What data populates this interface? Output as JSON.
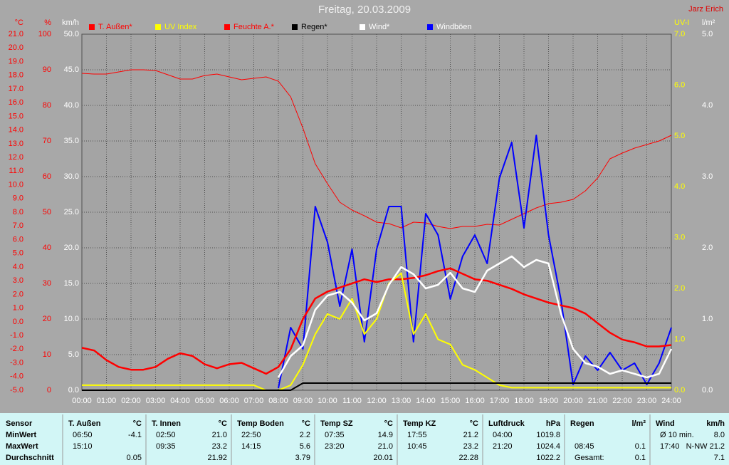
{
  "chart_data": {
    "type": "line",
    "title": "Freitag, 20.03.2009",
    "author": "Jarz Erich",
    "x": [
      0,
      0.5,
      1,
      1.5,
      2,
      2.5,
      3,
      3.5,
      4,
      4.5,
      5,
      5.5,
      6,
      6.5,
      7,
      7.5,
      8,
      8.5,
      9,
      9.5,
      10,
      10.5,
      11,
      11.5,
      12,
      12.5,
      13,
      13.5,
      14,
      14.5,
      15,
      15.5,
      16,
      16.5,
      17,
      17.5,
      18,
      18.5,
      19,
      19.5,
      20,
      20.5,
      21,
      21.5,
      22,
      22.5,
      23,
      23.5,
      24
    ],
    "xlim": [
      0,
      24
    ],
    "xticks": [
      {
        "value": 0,
        "label": "00:00"
      },
      {
        "value": 1,
        "label": "01:00"
      },
      {
        "value": 2,
        "label": "02:00"
      },
      {
        "value": 3,
        "label": "03:00"
      },
      {
        "value": 4,
        "label": "04:00"
      },
      {
        "value": 5,
        "label": "05:00"
      },
      {
        "value": 6,
        "label": "06:00"
      },
      {
        "value": 7,
        "label": "07:00"
      },
      {
        "value": 8,
        "label": "08:00"
      },
      {
        "value": 9,
        "label": "09:00"
      },
      {
        "value": 10,
        "label": "10:00"
      },
      {
        "value": 11,
        "label": "11:00"
      },
      {
        "value": 12,
        "label": "12:00"
      },
      {
        "value": 13,
        "label": "13:00"
      },
      {
        "value": 14,
        "label": "14:00"
      },
      {
        "value": 15,
        "label": "15:00"
      },
      {
        "value": 16,
        "label": "16:00"
      },
      {
        "value": 17,
        "label": "17:00"
      },
      {
        "value": 18,
        "label": "18:00"
      },
      {
        "value": 19,
        "label": "19:00"
      },
      {
        "value": 20,
        "label": "20:00"
      },
      {
        "value": 21,
        "label": "21:00"
      },
      {
        "value": 22,
        "label": "22:00"
      },
      {
        "value": 23,
        "label": "23:00"
      },
      {
        "value": 24,
        "label": "24:00"
      }
    ],
    "grid": true,
    "grid_axis": 2,
    "y_axes": [
      {
        "label": "°C",
        "color": "#ff0000",
        "lim": [
          -5,
          21
        ],
        "ticks": [
          {
            "value": -5,
            "label": "-5.0"
          },
          {
            "value": -4,
            "label": "-4.0"
          },
          {
            "value": -3,
            "label": "-3.0"
          },
          {
            "value": -2,
            "label": "-2.0"
          },
          {
            "value": -1,
            "label": "-1.0"
          },
          {
            "value": 0,
            "label": "0.0"
          },
          {
            "value": 1,
            "label": "1.0"
          },
          {
            "value": 2,
            "label": "2.0"
          },
          {
            "value": 3,
            "label": "3.0"
          },
          {
            "value": 4,
            "label": "4.0"
          },
          {
            "value": 5,
            "label": "5.0"
          },
          {
            "value": 6,
            "label": "6.0"
          },
          {
            "value": 7,
            "label": "7.0"
          },
          {
            "value": 8,
            "label": "8.0"
          },
          {
            "value": 9,
            "label": "9.0"
          },
          {
            "value": 10,
            "label": "10.0"
          },
          {
            "value": 11,
            "label": "11.0"
          },
          {
            "value": 12,
            "label": "12.0"
          },
          {
            "value": 13,
            "label": "13.0"
          },
          {
            "value": 14,
            "label": "14.0"
          },
          {
            "value": 15,
            "label": "15.0"
          },
          {
            "value": 16,
            "label": "16.0"
          },
          {
            "value": 17,
            "label": "17.0"
          },
          {
            "value": 18,
            "label": "18.0"
          },
          {
            "value": 19,
            "label": "19.0"
          },
          {
            "value": 20,
            "label": "20.0"
          },
          {
            "value": 21,
            "label": "21.0"
          }
        ]
      },
      {
        "label": "%",
        "color": "#ff0000",
        "lim": [
          0,
          100
        ],
        "ticks": [
          0,
          10,
          20,
          30,
          40,
          50,
          60,
          70,
          80,
          90,
          100
        ]
      },
      {
        "label": "km/h",
        "color": "#ffffff",
        "lim": [
          0,
          50
        ],
        "ticks": [
          {
            "value": 0,
            "label": "0.0"
          },
          {
            "value": 5,
            "label": "5.0"
          },
          {
            "value": 10,
            "label": "10.0"
          },
          {
            "value": 15,
            "label": "15.0"
          },
          {
            "value": 20,
            "label": "20.0"
          },
          {
            "value": 25,
            "label": "25.0"
          },
          {
            "value": 30,
            "label": "30.0"
          },
          {
            "value": 35,
            "label": "35.0"
          },
          {
            "value": 40,
            "label": "40.0"
          },
          {
            "value": 45,
            "label": "45.0"
          },
          {
            "value": 50,
            "label": "50.0"
          }
        ]
      },
      {
        "label": "UV-I",
        "color": "#ffff00",
        "lim": [
          0,
          7
        ],
        "ticks": [
          {
            "value": 0,
            "label": "0.0"
          },
          {
            "value": 1,
            "label": "1.0"
          },
          {
            "value": 2,
            "label": "2.0"
          },
          {
            "value": 3,
            "label": "3.0"
          },
          {
            "value": 4,
            "label": "4.0"
          },
          {
            "value": 5,
            "label": "5.0"
          },
          {
            "value": 6,
            "label": "6.0"
          },
          {
            "value": 7,
            "label": "7.0"
          }
        ]
      },
      {
        "label": "l/m²",
        "color": "#ffffff",
        "lim": [
          0,
          5
        ],
        "ticks": [
          {
            "value": 0,
            "label": "0.0"
          },
          {
            "value": 1,
            "label": "1.0"
          },
          {
            "value": 2,
            "label": "2.0"
          },
          {
            "value": 3,
            "label": "3.0"
          },
          {
            "value": 4,
            "label": "4.0"
          },
          {
            "value": 5,
            "label": "5.0"
          }
        ]
      }
    ],
    "series": [
      {
        "name": "T. Außen*",
        "color": "#ff0000",
        "label_color": "#ff0000",
        "axis": 0,
        "values": [
          -1.9,
          -2.1,
          -2.8,
          -3.3,
          -3.5,
          -3.5,
          -3.3,
          -2.7,
          -2.3,
          -2.5,
          -3.1,
          -3.4,
          -3.1,
          -3.0,
          -3.4,
          -3.8,
          -3.3,
          -2.0,
          0.2,
          1.7,
          2.2,
          2.5,
          2.8,
          3.1,
          2.9,
          3.1,
          3.1,
          3.2,
          3.4,
          3.7,
          3.9,
          3.5,
          3.1,
          3.0,
          2.7,
          2.4,
          2.0,
          1.7,
          1.4,
          1.2,
          1.0,
          0.6,
          -0.1,
          -0.8,
          -1.3,
          -1.5,
          -1.8,
          -1.8,
          -1.7
        ]
      },
      {
        "name": "UV Index",
        "color": "#ffff00",
        "label_color": "#ffff00",
        "axis": 3,
        "values": [
          0.1,
          0.1,
          0.1,
          0.1,
          0.1,
          0.1,
          0.1,
          0.1,
          0.1,
          0.1,
          0.1,
          0.1,
          0.1,
          0.1,
          0.1,
          0,
          0,
          0.1,
          0.5,
          1.1,
          1.5,
          1.4,
          1.8,
          1.1,
          1.4,
          2.1,
          2.3,
          1.1,
          1.5,
          1.0,
          0.9,
          0.5,
          0.4,
          0.25,
          0.1,
          0.05,
          0.05,
          0.05,
          0.05,
          0.05,
          0.05,
          0.05,
          0.05,
          0.05,
          0.05,
          0.05,
          0.05,
          0.05,
          0.05
        ]
      },
      {
        "name": "Feuchte A.*",
        "color": "#ff0000",
        "label_color": "#ff0000",
        "axis": 1,
        "values": [
          89,
          88.8,
          88.8,
          89.4,
          90,
          90,
          89.8,
          88.6,
          87.4,
          87.4,
          88.4,
          88.8,
          88,
          87.2,
          87.6,
          88,
          86.8,
          82.4,
          73.6,
          63.6,
          58,
          52.8,
          50.6,
          49,
          47.2,
          46.8,
          45.6,
          47.2,
          47,
          46,
          45.4,
          46,
          46,
          46.6,
          46.4,
          48,
          49.6,
          51.2,
          52.4,
          52.8,
          53.6,
          56,
          59.6,
          65,
          66.6,
          68,
          69,
          70,
          71.6
        ]
      },
      {
        "name": "Regen*",
        "color": "#000000",
        "label_color": "#000000",
        "axis": 4,
        "values": [
          0,
          0,
          0,
          0,
          0,
          0,
          0,
          0,
          0,
          0,
          0,
          0,
          0,
          0,
          0,
          0,
          0,
          0,
          0.1,
          0.1,
          0.1,
          0.1,
          0.1,
          0.1,
          0.1,
          0.1,
          0.1,
          0.1,
          0.1,
          0.1,
          0.1,
          0.1,
          0.1,
          0.1,
          0.1,
          0.1,
          0.1,
          0.1,
          0.1,
          0.1,
          0.1,
          0.1,
          0.1,
          0.1,
          0.1,
          0.1,
          0.1,
          0.1,
          0.1
        ]
      },
      {
        "name": "Wind*",
        "color": "#ffffff",
        "label_color": "#ffffff",
        "axis": 2,
        "values": [
          null,
          null,
          null,
          null,
          null,
          null,
          null,
          null,
          null,
          null,
          null,
          null,
          null,
          null,
          null,
          null,
          1.8,
          4.8,
          6.3,
          11.3,
          13.3,
          13.8,
          12.3,
          9.8,
          10.8,
          14.8,
          17.3,
          16.3,
          14.3,
          14.8,
          16.5,
          14.3,
          13.8,
          16.8,
          17.8,
          18.8,
          17.3,
          18.3,
          17.8,
          10.8,
          5.8,
          3.8,
          3.3,
          2.3,
          2.8,
          2.3,
          1.8,
          2.3,
          5.8
        ]
      },
      {
        "name": "Windböen",
        "color": "#0000ff",
        "label_color": "#ffffff",
        "axis": 2,
        "values": [
          null,
          null,
          null,
          null,
          null,
          null,
          null,
          null,
          null,
          null,
          null,
          null,
          null,
          null,
          null,
          null,
          0.3,
          8.8,
          5.8,
          25.8,
          20.8,
          11.8,
          19.8,
          6.8,
          19.8,
          25.8,
          25.8,
          6.8,
          24.8,
          21.8,
          12.8,
          18.8,
          21.8,
          17.8,
          29.8,
          34.8,
          22.8,
          35.8,
          21.8,
          12.8,
          0.8,
          4.8,
          2.8,
          5.3,
          2.8,
          3.8,
          0.8,
          3.8,
          8.8
        ]
      }
    ]
  },
  "table": {
    "columns": [
      {
        "header": "Sensor",
        "rows": [
          {
            "left": "MinWert"
          },
          {
            "left": "MaxWert"
          },
          {
            "left": "Durchschnitt"
          }
        ]
      },
      {
        "header": "T. Außen",
        "unit": "°C",
        "rows": [
          {
            "left": "06:50",
            "right": "-4.1"
          },
          {
            "left": "15:10"
          },
          {
            "right": "0.05"
          }
        ]
      },
      {
        "header": "T. Innen",
        "unit": "°C",
        "rows": [
          {
            "left": "02:50",
            "right": "21.0"
          },
          {
            "left": "09:35",
            "right": "23.2"
          },
          {
            "right": "21.92"
          }
        ]
      },
      {
        "header": "Temp Boden",
        "unit": "°C",
        "rows": [
          {
            "left": "22:50",
            "right": "2.2"
          },
          {
            "left": "14:15",
            "right": "5.6"
          },
          {
            "right": "3.79"
          }
        ]
      },
      {
        "header": "Temp SZ",
        "unit": "°C",
        "rows": [
          {
            "left": "07:35",
            "right": "14.9"
          },
          {
            "left": "23:20",
            "right": "21.0"
          },
          {
            "right": "20.01"
          }
        ]
      },
      {
        "header": "Temp KZ",
        "unit": "°C",
        "rows": [
          {
            "left": "17:55",
            "right": "21.2"
          },
          {
            "left": "10:45",
            "right": "23.2"
          },
          {
            "right": "22.28"
          }
        ]
      },
      {
        "header": "Luftdruck",
        "unit": "hPa",
        "rows": [
          {
            "left": "04:00",
            "right": "1019.8"
          },
          {
            "left": "21:20",
            "right": "1024.4"
          },
          {
            "right": "1022.2"
          }
        ]
      },
      {
        "header": "Regen",
        "unit": "l/m²",
        "rows": [
          {},
          {
            "left": "08:45",
            "right": "0.1"
          },
          {
            "left": "Gesamt:",
            "right": "0.1"
          }
        ]
      },
      {
        "header": "Wind",
        "unit": "km/h",
        "rows": [
          {
            "left": "Ø 10 min.",
            "right": "8.0"
          },
          {
            "left": "17:40",
            "right": "N-NW 21.2"
          },
          {
            "right": "7.1"
          }
        ]
      }
    ]
  }
}
